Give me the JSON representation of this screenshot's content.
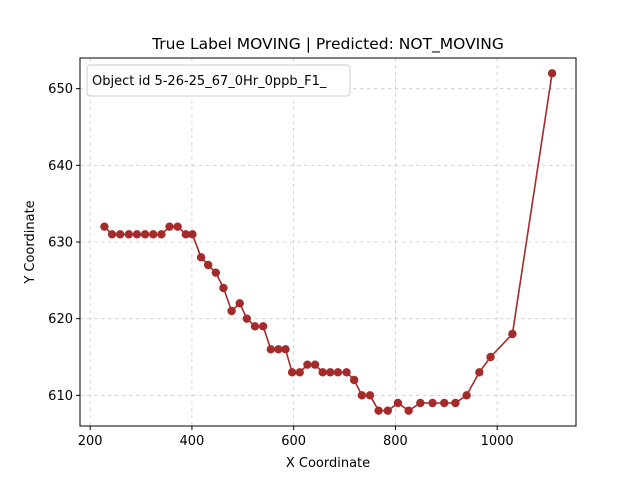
{
  "chart_data": {
    "type": "line",
    "title": "True Label MOVING | Predicted: NOT_MOVING",
    "xlabel": "X Coordinate",
    "ylabel": "Y Coordinate",
    "xlim": [
      180,
      1155
    ],
    "ylim": [
      606,
      654
    ],
    "xticks": [
      200,
      400,
      600,
      800,
      1000
    ],
    "yticks": [
      610,
      620,
      630,
      640,
      650
    ],
    "grid": true,
    "legend": {
      "position": "top-left",
      "entries": [
        "Object id 5-26-25_67_0Hr_0ppb_F1_"
      ]
    },
    "series": [
      {
        "color": "#a52a2a",
        "marker": "circle",
        "points": [
          [
            228,
            632
          ],
          [
            243,
            631
          ],
          [
            259,
            631
          ],
          [
            276,
            631
          ],
          [
            292,
            631
          ],
          [
            308,
            631
          ],
          [
            324,
            631
          ],
          [
            340,
            631
          ],
          [
            356,
            632
          ],
          [
            372,
            632
          ],
          [
            388,
            631
          ],
          [
            401,
            631
          ],
          [
            418,
            628
          ],
          [
            432,
            627
          ],
          [
            447,
            626
          ],
          [
            462,
            624
          ],
          [
            478,
            621
          ],
          [
            494,
            622
          ],
          [
            508,
            620
          ],
          [
            524,
            619
          ],
          [
            540,
            619
          ],
          [
            555,
            616
          ],
          [
            570,
            616
          ],
          [
            584,
            616
          ],
          [
            597,
            613
          ],
          [
            612,
            613
          ],
          [
            627,
            614
          ],
          [
            642,
            614
          ],
          [
            657,
            613
          ],
          [
            672,
            613
          ],
          [
            687,
            613
          ],
          [
            704,
            613
          ],
          [
            719,
            612
          ],
          [
            734,
            610
          ],
          [
            750,
            610
          ],
          [
            767,
            608
          ],
          [
            785,
            608
          ],
          [
            805,
            609
          ],
          [
            826,
            608
          ],
          [
            849,
            609
          ],
          [
            873,
            609
          ],
          [
            896,
            609
          ],
          [
            918,
            609
          ],
          [
            940,
            610
          ],
          [
            965,
            613
          ],
          [
            987,
            615
          ],
          [
            1030,
            618
          ],
          [
            1108,
            652
          ]
        ]
      }
    ]
  }
}
